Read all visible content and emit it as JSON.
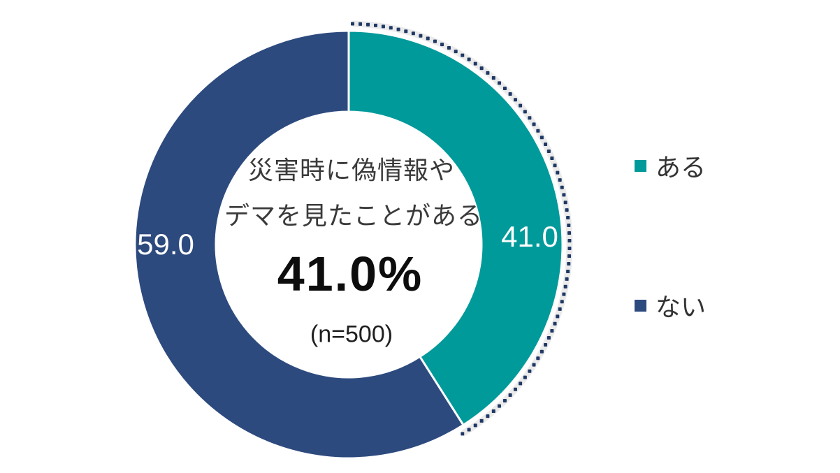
{
  "chart_data": {
    "type": "pie",
    "subtype": "donut",
    "title": "",
    "categories": [
      "ある",
      "ない"
    ],
    "values": [
      41.0,
      59.0
    ],
    "data_labels": [
      "41.0",
      "59.0"
    ],
    "colors": [
      "#009A9A",
      "#2D4A7E"
    ],
    "start_angle_deg": 0,
    "direction": "clockwise",
    "hole_ratio": 0.62,
    "legend_position": "right",
    "center_annotation": {
      "line1": "災害時に偽情報や",
      "line2": "デマを見たことがある",
      "value": "41.0%",
      "sample": "(n=500)"
    },
    "highlight": {
      "style": "dotted-arc",
      "applies_to": "ある",
      "color": "#1F3864",
      "halo_color": "#EBEBEB",
      "from_deg": 1,
      "to_deg": 149
    }
  },
  "legend": {
    "items": [
      {
        "label": "ある",
        "color": "#009A9A"
      },
      {
        "label": "ない",
        "color": "#2D4A7E"
      }
    ]
  }
}
